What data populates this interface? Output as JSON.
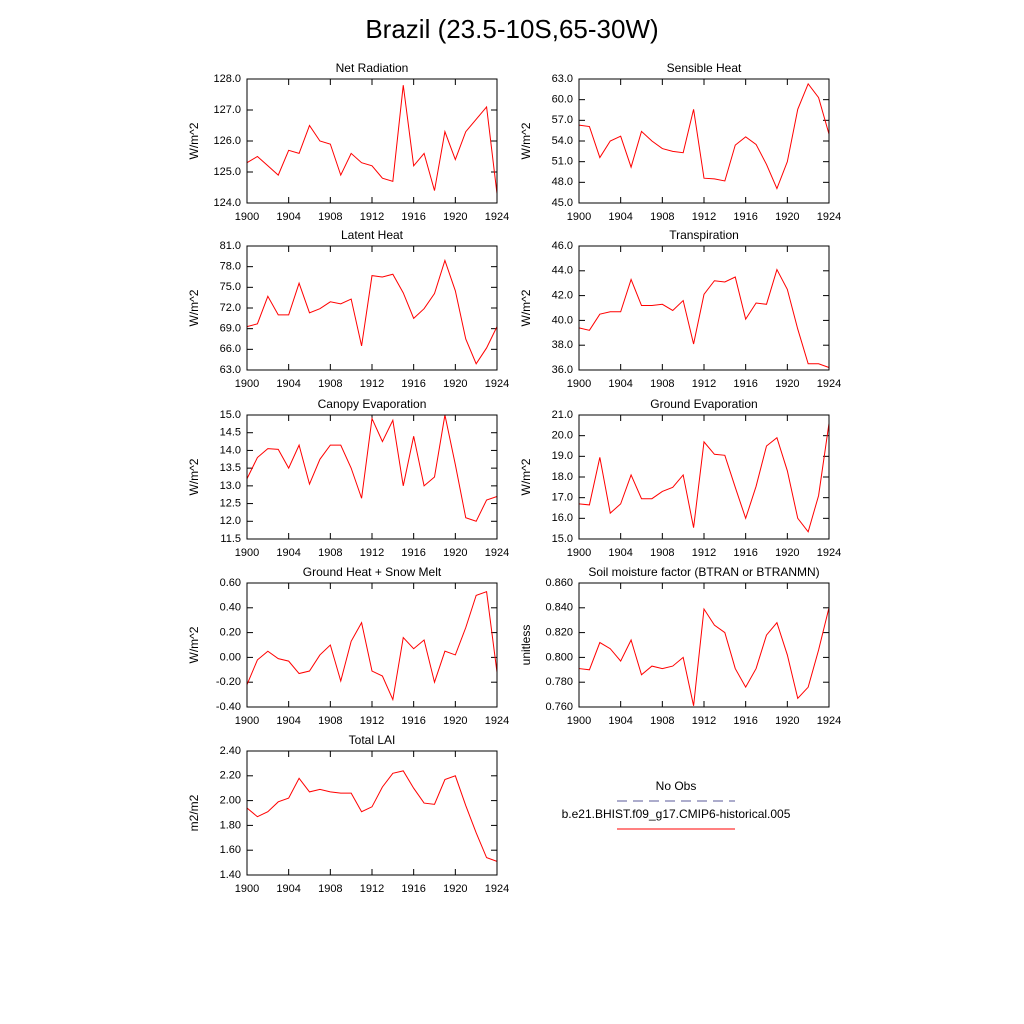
{
  "title": "Brazil (23.5-10S,65-30W)",
  "legend": [
    {
      "label": "No Obs",
      "color": "#5a5a9a",
      "dashed": true
    },
    {
      "label": "b.e21.BHIST.f09_g17.CMIP6-historical.005",
      "color": "#ff0000",
      "dashed": false
    }
  ],
  "chart_data": [
    {
      "type": "line",
      "title": "Net Radiation",
      "ylabel": "W/m^2",
      "color": "#ff0000",
      "x": [
        1900,
        1901,
        1902,
        1903,
        1904,
        1905,
        1906,
        1907,
        1908,
        1909,
        1910,
        1911,
        1912,
        1913,
        1914,
        1915,
        1916,
        1917,
        1918,
        1919,
        1920,
        1921,
        1922,
        1923,
        1924
      ],
      "values": [
        125.3,
        125.5,
        125.2,
        124.9,
        125.7,
        125.6,
        126.5,
        126.0,
        125.9,
        124.9,
        125.6,
        125.3,
        125.2,
        124.8,
        124.7,
        127.8,
        125.2,
        125.6,
        124.4,
        126.3,
        125.4,
        126.3,
        126.7,
        127.1,
        124.3
      ],
      "xlim": [
        1900,
        1924
      ],
      "xticks": [
        1900,
        1904,
        1908,
        1912,
        1916,
        1920,
        1924
      ],
      "ylim": [
        124,
        128
      ],
      "yticks": [
        {
          "value": 124,
          "label": "124.0"
        },
        {
          "value": 125,
          "label": "125.0"
        },
        {
          "value": 126,
          "label": "126.0"
        },
        {
          "value": 127,
          "label": "127.0"
        },
        {
          "value": 128,
          "label": "128.0"
        }
      ]
    },
    {
      "type": "line",
      "title": "Sensible Heat",
      "ylabel": "W/m^2",
      "color": "#ff0000",
      "x": [
        1900,
        1901,
        1902,
        1903,
        1904,
        1905,
        1906,
        1907,
        1908,
        1909,
        1910,
        1911,
        1912,
        1913,
        1914,
        1915,
        1916,
        1917,
        1918,
        1919,
        1920,
        1921,
        1922,
        1923,
        1924
      ],
      "values": [
        56.3,
        56.1,
        51.6,
        54.0,
        54.7,
        50.2,
        55.4,
        54.0,
        52.9,
        52.5,
        52.3,
        58.6,
        48.6,
        48.5,
        48.2,
        53.4,
        54.6,
        53.5,
        50.6,
        47.1,
        51.0,
        58.6,
        62.3,
        60.3,
        55.0
      ],
      "xlim": [
        1900,
        1924
      ],
      "xticks": [
        1900,
        1904,
        1908,
        1912,
        1916,
        1920,
        1924
      ],
      "ylim": [
        45,
        63
      ],
      "yticks": [
        {
          "value": 45,
          "label": "45.0"
        },
        {
          "value": 48,
          "label": "48.0"
        },
        {
          "value": 51,
          "label": "51.0"
        },
        {
          "value": 54,
          "label": "54.0"
        },
        {
          "value": 57,
          "label": "57.0"
        },
        {
          "value": 60,
          "label": "60.0"
        },
        {
          "value": 63,
          "label": "63.0"
        }
      ]
    },
    {
      "type": "line",
      "title": "Latent Heat",
      "ylabel": "W/m^2",
      "color": "#ff0000",
      "x": [
        1900,
        1901,
        1902,
        1903,
        1904,
        1905,
        1906,
        1907,
        1908,
        1909,
        1910,
        1911,
        1912,
        1913,
        1914,
        1915,
        1916,
        1917,
        1918,
        1919,
        1920,
        1921,
        1922,
        1923,
        1924
      ],
      "values": [
        69.3,
        69.7,
        73.7,
        71.0,
        71.0,
        75.6,
        71.3,
        71.9,
        72.9,
        72.6,
        73.3,
        66.5,
        76.7,
        76.5,
        76.9,
        74.2,
        70.5,
        71.9,
        74.1,
        78.9,
        74.5,
        67.5,
        63.9,
        66.2,
        69.3
      ],
      "xlim": [
        1900,
        1924
      ],
      "xticks": [
        1900,
        1904,
        1908,
        1912,
        1916,
        1920,
        1924
      ],
      "ylim": [
        63,
        81
      ],
      "yticks": [
        {
          "value": 63,
          "label": "63.0"
        },
        {
          "value": 66,
          "label": "66.0"
        },
        {
          "value": 69,
          "label": "69.0"
        },
        {
          "value": 72,
          "label": "72.0"
        },
        {
          "value": 75,
          "label": "75.0"
        },
        {
          "value": 78,
          "label": "78.0"
        },
        {
          "value": 81,
          "label": "81.0"
        }
      ]
    },
    {
      "type": "line",
      "title": "Transpiration",
      "ylabel": "W/m^2",
      "color": "#ff0000",
      "x": [
        1900,
        1901,
        1902,
        1903,
        1904,
        1905,
        1906,
        1907,
        1908,
        1909,
        1910,
        1911,
        1912,
        1913,
        1914,
        1915,
        1916,
        1917,
        1918,
        1919,
        1920,
        1921,
        1922,
        1923,
        1924
      ],
      "values": [
        39.4,
        39.2,
        40.5,
        40.7,
        40.7,
        43.3,
        41.2,
        41.2,
        41.3,
        40.8,
        41.6,
        38.1,
        42.1,
        43.2,
        43.1,
        43.5,
        40.1,
        41.4,
        41.3,
        44.1,
        42.5,
        39.3,
        36.5,
        36.5,
        36.2
      ],
      "xlim": [
        1900,
        1924
      ],
      "xticks": [
        1900,
        1904,
        1908,
        1912,
        1916,
        1920,
        1924
      ],
      "ylim": [
        36,
        46
      ],
      "yticks": [
        {
          "value": 36,
          "label": "36.0"
        },
        {
          "value": 38,
          "label": "38.0"
        },
        {
          "value": 40,
          "label": "40.0"
        },
        {
          "value": 42,
          "label": "42.0"
        },
        {
          "value": 44,
          "label": "44.0"
        },
        {
          "value": 46,
          "label": "46.0"
        }
      ]
    },
    {
      "type": "line",
      "title": "Canopy Evaporation",
      "ylabel": "W/m^2",
      "color": "#ff0000",
      "x": [
        1900,
        1901,
        1902,
        1903,
        1904,
        1905,
        1906,
        1907,
        1908,
        1909,
        1910,
        1911,
        1912,
        1913,
        1914,
        1915,
        1916,
        1917,
        1918,
        1919,
        1920,
        1921,
        1922,
        1923,
        1924
      ],
      "values": [
        13.2,
        13.8,
        14.05,
        14.03,
        13.5,
        14.15,
        13.05,
        13.75,
        14.15,
        14.15,
        13.5,
        12.65,
        14.9,
        14.25,
        14.85,
        13.0,
        14.4,
        13.0,
        13.25,
        15.0,
        13.6,
        12.1,
        12.0,
        12.6,
        12.7
      ],
      "xlim": [
        1900,
        1924
      ],
      "xticks": [
        1900,
        1904,
        1908,
        1912,
        1916,
        1920,
        1924
      ],
      "ylim": [
        11.5,
        15
      ],
      "yticks": [
        11.5,
        {
          "value": 12,
          "label": "12.0"
        },
        12.5,
        {
          "value": 13,
          "label": "13.0"
        },
        13.5,
        {
          "value": 14,
          "label": "14.0"
        },
        14.5,
        {
          "value": 15,
          "label": "15.0"
        }
      ]
    },
    {
      "type": "line",
      "title": "Ground Evaporation",
      "ylabel": "W/m^2",
      "color": "#ff0000",
      "x": [
        1900,
        1901,
        1902,
        1903,
        1904,
        1905,
        1906,
        1907,
        1908,
        1909,
        1910,
        1911,
        1912,
        1913,
        1914,
        1915,
        1916,
        1917,
        1918,
        1919,
        1920,
        1921,
        1922,
        1923,
        1924
      ],
      "values": [
        16.7,
        16.65,
        18.95,
        16.25,
        16.7,
        18.1,
        16.95,
        16.95,
        17.3,
        17.5,
        18.1,
        15.55,
        19.7,
        19.1,
        19.05,
        17.5,
        16.0,
        17.55,
        19.5,
        19.9,
        18.3,
        16.0,
        15.35,
        17.1,
        20.6
      ],
      "xlim": [
        1900,
        1924
      ],
      "xticks": [
        1900,
        1904,
        1908,
        1912,
        1916,
        1920,
        1924
      ],
      "ylim": [
        15,
        21
      ],
      "yticks": [
        {
          "value": 15,
          "label": "15.0"
        },
        {
          "value": 16,
          "label": "16.0"
        },
        {
          "value": 17,
          "label": "17.0"
        },
        {
          "value": 18,
          "label": "18.0"
        },
        {
          "value": 19,
          "label": "19.0"
        },
        {
          "value": 20,
          "label": "20.0"
        },
        {
          "value": 21,
          "label": "21.0"
        }
      ]
    },
    {
      "type": "line",
      "title": "Ground Heat + Snow Melt",
      "ylabel": "W/m^2",
      "color": "#ff0000",
      "x": [
        1900,
        1901,
        1902,
        1903,
        1904,
        1905,
        1906,
        1907,
        1908,
        1909,
        1910,
        1911,
        1912,
        1913,
        1914,
        1915,
        1916,
        1917,
        1918,
        1919,
        1920,
        1921,
        1922,
        1923,
        1924
      ],
      "values": [
        -0.22,
        -0.02,
        0.05,
        -0.01,
        -0.03,
        -0.13,
        -0.11,
        0.02,
        0.1,
        -0.19,
        0.13,
        0.28,
        -0.11,
        -0.15,
        -0.34,
        0.16,
        0.07,
        0.14,
        -0.2,
        0.05,
        0.02,
        0.24,
        0.5,
        0.53,
        -0.12
      ],
      "xlim": [
        1900,
        1924
      ],
      "xticks": [
        1900,
        1904,
        1908,
        1912,
        1916,
        1920,
        1924
      ],
      "ylim": [
        -0.4,
        0.6
      ],
      "yticks": [
        {
          "value": -0.4,
          "label": "-0.40"
        },
        {
          "value": -0.2,
          "label": "-0.20"
        },
        {
          "value": 0,
          "label": "0.00"
        },
        {
          "value": 0.2,
          "label": "0.20"
        },
        {
          "value": 0.4,
          "label": "0.40"
        },
        {
          "value": 0.6,
          "label": "0.60"
        }
      ]
    },
    {
      "type": "line",
      "title": "Soil moisture factor (BTRAN or BTRANMN)",
      "ylabel": "unitless",
      "color": "#ff0000",
      "x": [
        1900,
        1901,
        1902,
        1903,
        1904,
        1905,
        1906,
        1907,
        1908,
        1909,
        1910,
        1911,
        1912,
        1913,
        1914,
        1915,
        1916,
        1917,
        1918,
        1919,
        1920,
        1921,
        1922,
        1923,
        1924
      ],
      "values": [
        0.791,
        0.79,
        0.812,
        0.807,
        0.797,
        0.814,
        0.786,
        0.793,
        0.791,
        0.793,
        0.8,
        0.761,
        0.839,
        0.826,
        0.82,
        0.791,
        0.776,
        0.791,
        0.818,
        0.828,
        0.802,
        0.767,
        0.776,
        0.806,
        0.84
      ],
      "xlim": [
        1900,
        1924
      ],
      "xticks": [
        1900,
        1904,
        1908,
        1912,
        1916,
        1920,
        1924
      ],
      "ylim": [
        0.76,
        0.86
      ],
      "yticks": [
        {
          "value": 0.76,
          "label": "0.760"
        },
        {
          "value": 0.78,
          "label": "0.780"
        },
        {
          "value": 0.8,
          "label": "0.800"
        },
        {
          "value": 0.82,
          "label": "0.820"
        },
        {
          "value": 0.84,
          "label": "0.840"
        },
        {
          "value": 0.86,
          "label": "0.860"
        }
      ]
    },
    {
      "type": "line",
      "title": "Total LAI",
      "ylabel": "m2/m2",
      "color": "#ff0000",
      "x": [
        1900,
        1901,
        1902,
        1903,
        1904,
        1905,
        1906,
        1907,
        1908,
        1909,
        1910,
        1911,
        1912,
        1913,
        1914,
        1915,
        1916,
        1917,
        1918,
        1919,
        1920,
        1921,
        1922,
        1923,
        1924
      ],
      "values": [
        1.94,
        1.87,
        1.91,
        1.99,
        2.02,
        2.18,
        2.07,
        2.09,
        2.07,
        2.06,
        2.06,
        1.91,
        1.95,
        2.11,
        2.22,
        2.24,
        2.1,
        1.98,
        1.97,
        2.17,
        2.2,
        1.96,
        1.74,
        1.54,
        1.51
      ],
      "xlim": [
        1900,
        1924
      ],
      "xticks": [
        1900,
        1904,
        1908,
        1912,
        1916,
        1920,
        1924
      ],
      "ylim": [
        1.4,
        2.4
      ],
      "yticks": [
        {
          "value": 1.4,
          "label": "1.40"
        },
        {
          "value": 1.6,
          "label": "1.60"
        },
        {
          "value": 1.8,
          "label": "1.80"
        },
        {
          "value": 2,
          "label": "2.00"
        },
        {
          "value": 2.2,
          "label": "2.20"
        },
        {
          "value": 2.4,
          "label": "2.40"
        }
      ]
    }
  ]
}
